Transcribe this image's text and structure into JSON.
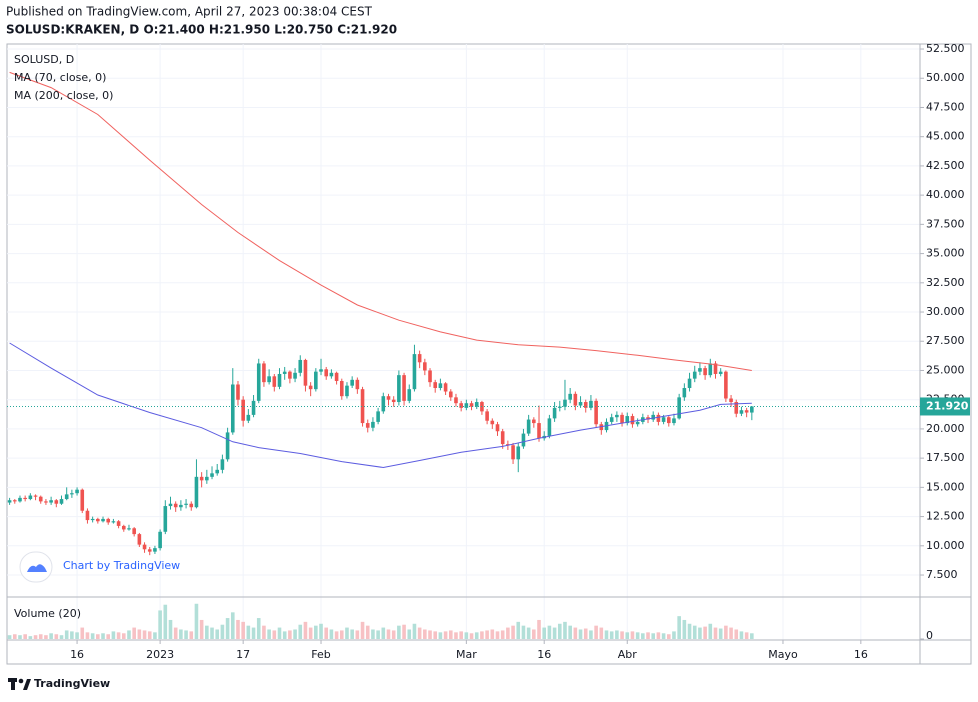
{
  "header": {
    "published": "Published on TradingView.com, April 27, 2023 00:38:04 CEST",
    "symbol_line": "SOLUSD:KRAKEN, D  O:21.400 H:21.950 L:20.750 C:21.920"
  },
  "chart_data": {
    "type": "candlestick",
    "symbol_label": "SOLUSD, D",
    "volume_label": "Volume (20)",
    "watermark": "Chart by TradingView",
    "up_color": "#26a69a",
    "down_color": "#ef5350",
    "volume_up_color": "#b2dfd8",
    "volume_down_color": "#f7c1c4",
    "grid": true,
    "xlim": [
      1.5,
      177.4
    ],
    "xticks": [
      {
        "value": 15,
        "label": "16"
      },
      {
        "value": 31,
        "label": "2023"
      },
      {
        "value": 47,
        "label": "17"
      },
      {
        "value": 62,
        "label": "Feb"
      },
      {
        "value": 90,
        "label": "Mar"
      },
      {
        "value": 105,
        "label": "16"
      },
      {
        "value": 121,
        "label": "Abr"
      },
      {
        "value": 151,
        "label": "Mayo"
      },
      {
        "value": 166,
        "label": "16"
      }
    ],
    "ylim": [
      5.62,
      52.93
    ],
    "yticks": [
      {
        "value": 7.5,
        "label": "7.500"
      },
      {
        "value": 10,
        "label": "10.000"
      },
      {
        "value": 12.5,
        "label": "12.500"
      },
      {
        "value": 15,
        "label": "15.000"
      },
      {
        "value": 17.5,
        "label": "17.500"
      },
      {
        "value": 20,
        "label": "20.000"
      },
      {
        "value": 22.5,
        "label": "22.500"
      },
      {
        "value": 25,
        "label": "25.000"
      },
      {
        "value": 27.5,
        "label": "27.500"
      },
      {
        "value": 30,
        "label": "30.000"
      },
      {
        "value": 32.5,
        "label": "32.500"
      },
      {
        "value": 35,
        "label": "35.000"
      },
      {
        "value": 37.5,
        "label": "37.500"
      },
      {
        "value": 40,
        "label": "40.000"
      },
      {
        "value": 42.5,
        "label": "42.500"
      },
      {
        "value": 45,
        "label": "45.000"
      },
      {
        "value": 47.5,
        "label": "47.500"
      },
      {
        "value": 50,
        "label": "50.000"
      },
      {
        "value": 52.5,
        "label": "52.500"
      }
    ],
    "volume_ylim": [
      0,
      42
    ],
    "volume_ticks": [
      0
    ],
    "last_price": {
      "value": 21.92,
      "label": "21.920"
    },
    "candles": {
      "x": [
        2,
        3,
        4,
        5,
        6,
        7,
        8,
        9,
        10,
        11,
        12,
        13,
        14,
        15,
        16,
        17,
        18,
        19,
        20,
        21,
        22,
        23,
        24,
        25,
        26,
        27,
        28,
        29,
        30,
        31,
        32,
        33,
        34,
        35,
        36,
        37,
        38,
        39,
        40,
        41,
        42,
        43,
        44,
        45,
        46,
        47,
        48,
        49,
        50,
        51,
        52,
        53,
        54,
        55,
        56,
        57,
        58,
        59,
        60,
        61,
        62,
        63,
        64,
        65,
        66,
        67,
        68,
        69,
        70,
        71,
        72,
        73,
        74,
        75,
        76,
        77,
        78,
        79,
        80,
        81,
        82,
        83,
        84,
        85,
        86,
        87,
        88,
        89,
        90,
        91,
        92,
        93,
        94,
        95,
        96,
        97,
        98,
        99,
        100,
        101,
        102,
        103,
        104,
        105,
        106,
        107,
        108,
        109,
        110,
        111,
        112,
        113,
        114,
        115,
        116,
        117,
        118,
        119,
        120,
        121,
        122,
        123,
        124,
        125,
        126,
        127,
        128,
        129,
        130,
        131,
        132,
        133,
        134,
        135,
        136,
        137,
        138,
        139,
        140,
        141,
        142,
        143,
        144,
        145
      ],
      "open": [
        13.7,
        13.9,
        13.8,
        14.1,
        14.0,
        14.3,
        14.2,
        13.8,
        13.7,
        13.9,
        13.6,
        14.0,
        14.4,
        14.5,
        14.8,
        13.0,
        12.2,
        12.3,
        12.1,
        12.3,
        12.0,
        12.1,
        11.7,
        11.4,
        11.5,
        11.0,
        10.1,
        9.7,
        9.5,
        9.8,
        11.2,
        13.4,
        13.6,
        13.3,
        13.5,
        13.6,
        13.3,
        15.9,
        15.6,
        15.9,
        16.2,
        16.5,
        17.4,
        19.7,
        23.8,
        22.5,
        20.7,
        21.2,
        22.4,
        25.6,
        24.0,
        24.5,
        23.6,
        24.7,
        24.9,
        24.3,
        24.8,
        25.9,
        23.7,
        23.4,
        24.9,
        25.1,
        24.5,
        24.8,
        24.1,
        22.8,
        23.7,
        24.2,
        23.4,
        20.5,
        20.1,
        20.6,
        21.5,
        22.8,
        22.5,
        22.3,
        24.6,
        22.4,
        23.4,
        26.4,
        25.7,
        25.0,
        24.0,
        23.5,
        23.9,
        23.2,
        22.7,
        22.2,
        21.8,
        22.2,
        21.9,
        22.3,
        21.5,
        20.7,
        20.4,
        19.8,
        18.7,
        18.6,
        17.4,
        18.5,
        19.6,
        20.8,
        20.5,
        19.2,
        19.4,
        20.9,
        21.8,
        21.9,
        22.5,
        23.0,
        22.0,
        22.3,
        21.8,
        22.4,
        20.4,
        19.9,
        20.6,
        21.0,
        21.2,
        20.5,
        21.1,
        20.4,
        20.6,
        21.0,
        20.8,
        21.2,
        20.6,
        21.0,
        20.5,
        20.9,
        22.7,
        23.5,
        24.3,
        24.9,
        25.2,
        24.6,
        25.6,
        24.7,
        24.9,
        22.6,
        22.3,
        21.3,
        21.6,
        21.4
      ],
      "high": [
        14.1,
        14.0,
        14.3,
        14.3,
        14.5,
        14.4,
        14.3,
        14.0,
        14.2,
        14.0,
        14.3,
        15.0,
        14.8,
        15.0,
        14.9,
        13.2,
        12.5,
        12.4,
        12.5,
        12.4,
        12.3,
        12.2,
        11.8,
        11.8,
        11.6,
        11.1,
        10.3,
        9.9,
        10.0,
        11.4,
        13.9,
        14.2,
        13.8,
        13.9,
        14.0,
        13.8,
        17.4,
        16.3,
        16.5,
        16.8,
        17.0,
        17.8,
        20.1,
        25.2,
        24.1,
        22.8,
        21.7,
        22.9,
        26.0,
        25.8,
        25.1,
        24.7,
        25.2,
        25.3,
        25.0,
        25.2,
        26.3,
        26.0,
        24.0,
        25.2,
        26.0,
        25.3,
        25.1,
        24.9,
        24.3,
        24.0,
        24.5,
        24.4,
        23.6,
        20.8,
        21.0,
        21.8,
        23.1,
        23.0,
        22.8,
        25.0,
        24.8,
        23.8,
        27.2,
        26.7,
        26.0,
        25.2,
        24.2,
        24.3,
        24.0,
        23.4,
        23.0,
        22.4,
        22.5,
        22.4,
        22.6,
        22.4,
        21.7,
        20.9,
        20.6,
        20.0,
        19.0,
        18.8,
        18.8,
        20.0,
        21.2,
        21.0,
        22.0,
        19.8,
        21.2,
        22.3,
        22.4,
        24.2,
        23.5,
        23.2,
        22.8,
        22.5,
        22.9,
        22.6,
        20.6,
        20.9,
        21.3,
        21.5,
        21.4,
        21.4,
        21.3,
        20.9,
        21.3,
        21.2,
        21.5,
        21.4,
        21.2,
        21.1,
        21.3,
        23.0,
        23.9,
        24.8,
        25.4,
        25.7,
        25.4,
        26.0,
        25.8,
        25.2,
        25.0,
        22.9,
        22.5,
        21.9,
        21.8,
        21.95
      ],
      "low": [
        13.5,
        13.6,
        13.7,
        13.8,
        13.9,
        13.9,
        13.6,
        13.5,
        13.5,
        13.3,
        13.5,
        13.9,
        14.1,
        14.3,
        12.8,
        11.9,
        12.0,
        11.9,
        12.0,
        11.8,
        11.9,
        11.5,
        11.2,
        11.3,
        10.8,
        9.9,
        9.4,
        9.2,
        9.3,
        9.6,
        11.0,
        13.1,
        12.9,
        13.0,
        13.2,
        13.0,
        13.2,
        15.0,
        15.3,
        15.7,
        16.0,
        16.2,
        17.2,
        19.5,
        22.0,
        20.2,
        20.5,
        21.0,
        22.2,
        23.6,
        23.8,
        23.2,
        23.4,
        24.2,
        23.9,
        24.0,
        24.5,
        23.2,
        22.8,
        23.2,
        24.6,
        24.2,
        24.3,
        23.8,
        22.5,
        22.6,
        23.5,
        23.0,
        20.2,
        19.7,
        19.8,
        20.4,
        21.3,
        22.0,
        21.9,
        22.0,
        22.0,
        22.2,
        23.2,
        25.2,
        24.6,
        23.6,
        23.1,
        23.3,
        22.9,
        22.4,
        21.9,
        21.5,
        21.6,
        21.6,
        21.7,
        21.2,
        20.4,
        20.0,
        19.4,
        18.3,
        18.2,
        17.0,
        16.3,
        18.3,
        19.4,
        20.1,
        18.9,
        19.0,
        19.2,
        20.6,
        21.5,
        21.6,
        22.2,
        21.6,
        21.8,
        21.4,
        21.6,
        20.1,
        19.5,
        19.7,
        20.4,
        20.6,
        20.2,
        20.3,
        20.1,
        20.2,
        20.4,
        20.5,
        20.6,
        20.3,
        20.4,
        20.2,
        20.3,
        20.8,
        22.4,
        23.2,
        24.0,
        24.6,
        24.2,
        24.4,
        24.3,
        24.5,
        22.3,
        21.9,
        21.0,
        21.1,
        21.0,
        20.75
      ],
      "close": [
        13.9,
        13.8,
        14.1,
        14.0,
        14.3,
        14.2,
        13.8,
        13.7,
        13.9,
        13.6,
        14.0,
        14.4,
        14.5,
        14.8,
        13.0,
        12.2,
        12.3,
        12.1,
        12.3,
        12.0,
        12.1,
        11.7,
        11.4,
        11.5,
        11.0,
        10.1,
        9.7,
        9.5,
        9.8,
        11.2,
        13.4,
        13.6,
        13.3,
        13.5,
        13.6,
        13.3,
        15.9,
        15.6,
        15.9,
        16.2,
        16.5,
        17.4,
        19.7,
        23.8,
        22.5,
        20.7,
        21.2,
        22.4,
        25.6,
        24.0,
        24.5,
        23.6,
        24.7,
        24.9,
        24.3,
        24.8,
        25.9,
        23.7,
        23.4,
        24.9,
        25.1,
        24.5,
        24.8,
        24.1,
        22.8,
        23.7,
        24.2,
        23.4,
        20.5,
        20.1,
        20.6,
        21.5,
        22.8,
        22.5,
        22.3,
        24.6,
        22.4,
        23.4,
        26.4,
        25.7,
        25.0,
        24.0,
        23.5,
        23.9,
        23.2,
        22.7,
        22.2,
        21.8,
        22.2,
        21.9,
        22.3,
        21.5,
        20.7,
        20.4,
        19.8,
        18.7,
        18.6,
        17.4,
        18.5,
        19.6,
        20.8,
        20.5,
        19.2,
        19.4,
        20.9,
        21.8,
        21.9,
        22.5,
        23.0,
        22.0,
        22.3,
        21.8,
        22.4,
        20.4,
        19.9,
        20.6,
        21.0,
        21.2,
        20.5,
        21.1,
        20.4,
        20.6,
        21.0,
        20.8,
        21.2,
        20.6,
        21.0,
        20.5,
        20.9,
        22.7,
        23.5,
        24.3,
        24.9,
        25.2,
        24.6,
        25.6,
        24.7,
        24.9,
        22.6,
        22.3,
        21.3,
        21.6,
        21.4,
        21.92
      ],
      "volume": [
        4,
        5,
        4,
        5,
        3,
        4,
        5,
        4,
        6,
        5,
        4,
        9,
        8,
        7,
        12,
        7,
        6,
        5,
        6,
        5,
        8,
        7,
        6,
        9,
        12,
        10,
        9,
        8,
        7,
        30,
        36,
        20,
        12,
        10,
        9,
        8,
        37,
        20,
        14,
        12,
        10,
        15,
        22,
        28,
        20,
        18,
        14,
        12,
        22,
        14,
        10,
        9,
        12,
        8,
        9,
        10,
        15,
        18,
        12,
        14,
        16,
        12,
        10,
        8,
        9,
        12,
        10,
        9,
        18,
        14,
        10,
        9,
        12,
        10,
        9,
        14,
        15,
        10,
        16,
        12,
        10,
        9,
        8,
        7,
        8,
        9,
        7,
        8,
        7,
        6,
        7,
        8,
        9,
        10,
        8,
        9,
        12,
        14,
        18,
        14,
        12,
        10,
        20,
        12,
        14,
        12,
        16,
        18,
        14,
        12,
        10,
        11,
        9,
        14,
        12,
        9,
        8,
        9,
        8,
        7,
        8,
        7,
        6,
        7,
        6,
        7,
        6,
        5,
        8,
        24,
        20,
        16,
        14,
        12,
        13,
        16,
        12,
        11,
        14,
        12,
        10,
        8,
        7,
        6
      ]
    },
    "series": [
      {
        "name": "MA (70, close, 0)",
        "color": "#5c5ce0",
        "x": [
          2,
          10,
          19,
          29,
          39,
          45,
          50,
          58,
          66,
          74,
          81,
          89,
          97,
          104,
          112,
          120,
          127,
          135,
          139,
          145
        ],
        "values": [
          27.35,
          25.2,
          22.9,
          21.4,
          20.1,
          18.9,
          18.4,
          17.9,
          17.2,
          16.7,
          17.3,
          18.0,
          18.5,
          19.2,
          19.9,
          20.5,
          21.0,
          21.6,
          22.1,
          22.2
        ]
      },
      {
        "name": "MA (200, close, 0)",
        "color": "#f0625f",
        "x": [
          2,
          10,
          19,
          29,
          39,
          46,
          54,
          62,
          69,
          77,
          85,
          92,
          100,
          108,
          115,
          123,
          130,
          138,
          145
        ],
        "values": [
          50.5,
          49.2,
          46.9,
          43.0,
          39.2,
          36.8,
          34.4,
          32.3,
          30.6,
          29.3,
          28.3,
          27.6,
          27.2,
          27.0,
          26.7,
          26.3,
          25.9,
          25.5,
          25.0
        ]
      }
    ]
  },
  "footer": {
    "brand": "TradingView"
  }
}
